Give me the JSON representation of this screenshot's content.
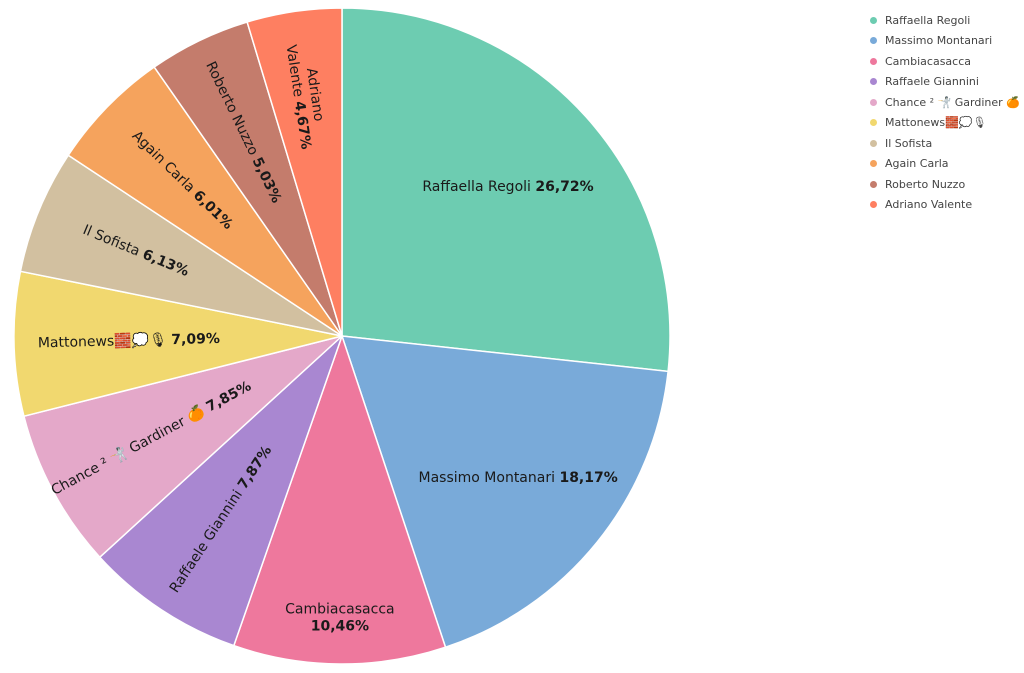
{
  "chart_data": {
    "type": "pie",
    "title": "",
    "legend_position": "top-right",
    "slices": [
      {
        "label": "Raffaella Regoli",
        "value": 26.72,
        "value_text": "26,72%",
        "color": "#6dccb1"
      },
      {
        "label": "Massimo Montanari",
        "value": 18.17,
        "value_text": "18,17%",
        "color": "#79aad9"
      },
      {
        "label": "Cambiacasacca",
        "value": 10.46,
        "value_text": "10,46%",
        "color": "#ee789d"
      },
      {
        "label": "Raffaele Giannini",
        "value": 7.87,
        "value_text": "7,87%",
        "color": "#a987d1"
      },
      {
        "label": "Chance ² 🤺 Gardiner 🍊",
        "value": 7.85,
        "value_text": "7,85%",
        "color": "#e4a8c9"
      },
      {
        "label": "Mattonews🧱💭🎙",
        "value": 7.09,
        "value_text": "7,09%",
        "color": "#f1d86f"
      },
      {
        "label": "Il Sofista",
        "value": 6.13,
        "value_text": "6,13%",
        "color": "#d2c0a0"
      },
      {
        "label": "Again Carla",
        "value": 6.01,
        "value_text": "6,01%",
        "color": "#f5a35d"
      },
      {
        "label": "Roberto Nuzzo",
        "value": 5.03,
        "value_text": "5,03%",
        "color": "#c47c6c"
      },
      {
        "label": "Adriano Valente",
        "value": 4.67,
        "value_text": "4,67%",
        "color": "#fe7f61"
      }
    ]
  }
}
